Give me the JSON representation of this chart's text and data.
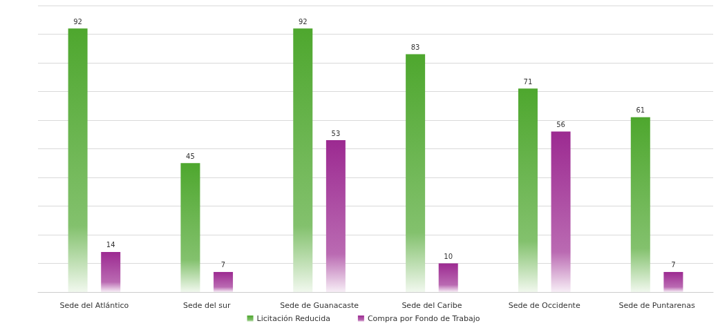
{
  "chart_data": {
    "type": "bar",
    "categories": [
      "Sede del Atlántico",
      "Sede del sur",
      "Sede de Guanacaste",
      "Sede del Caribe",
      "Sede de Occidente",
      "Sede de Puntarenas"
    ],
    "series": [
      {
        "name": "Licitación Reducida",
        "color": "#4ea72e",
        "values": [
          92,
          45,
          92,
          83,
          71,
          61
        ]
      },
      {
        "name": "Compra por Fondo de Trabajo",
        "color": "#9c2a91",
        "values": [
          14,
          7,
          53,
          10,
          56,
          7
        ]
      }
    ],
    "ylim": [
      0,
      100
    ],
    "yticks": [
      {
        "value": 0,
        "label": null
      },
      {
        "value": 10,
        "label": null
      },
      {
        "value": 20,
        "label": null
      },
      {
        "value": 30,
        "label": null
      },
      {
        "value": 40,
        "label": null
      },
      {
        "value": 50,
        "label": null
      },
      {
        "value": 60,
        "label": null
      },
      {
        "value": 70,
        "label": null
      },
      {
        "value": 80,
        "label": null
      },
      {
        "value": 90,
        "label": null
      },
      {
        "value": 100,
        "label": null
      }
    ],
    "tick_labels": "x",
    "grid": "y",
    "legend": "bottom",
    "data_labels": true
  }
}
